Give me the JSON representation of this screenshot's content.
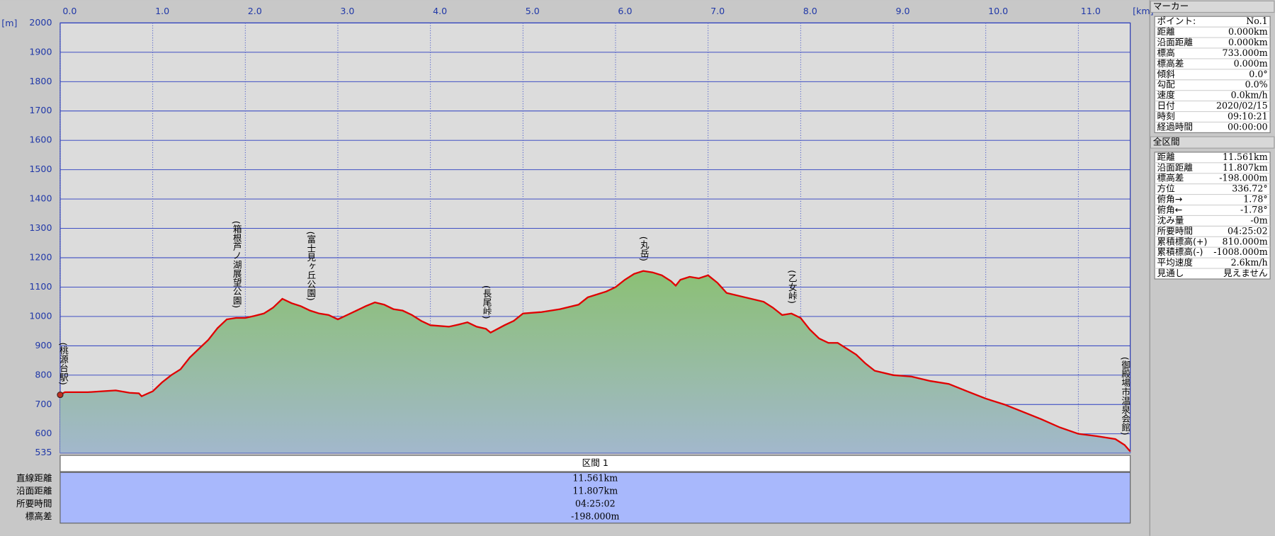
{
  "chart_data": {
    "type": "area",
    "x_unit": "[km]",
    "y_unit": "[m]",
    "x": [
      0,
      0.05,
      0.3,
      0.45,
      0.6,
      0.75,
      0.85,
      0.88,
      0.95,
      1.0,
      1.1,
      1.2,
      1.3,
      1.4,
      1.5,
      1.6,
      1.7,
      1.8,
      1.9,
      2.0,
      2.1,
      2.2,
      2.3,
      2.4,
      2.5,
      2.6,
      2.7,
      2.8,
      2.9,
      3.0,
      3.1,
      3.2,
      3.3,
      3.4,
      3.5,
      3.6,
      3.7,
      3.8,
      3.9,
      4.0,
      4.2,
      4.3,
      4.4,
      4.5,
      4.6,
      4.65,
      4.8,
      4.9,
      5.0,
      5.2,
      5.4,
      5.6,
      5.7,
      5.9,
      6.0,
      6.1,
      6.2,
      6.3,
      6.4,
      6.5,
      6.6,
      6.65,
      6.7,
      6.8,
      6.9,
      7.0,
      7.1,
      7.2,
      7.4,
      7.6,
      7.7,
      7.8,
      7.9,
      8.0,
      8.1,
      8.2,
      8.3,
      8.4,
      8.6,
      8.7,
      8.8,
      9.0,
      9.2,
      9.4,
      9.6,
      9.8,
      10.0,
      10.2,
      10.4,
      10.6,
      10.8,
      11.0,
      11.2,
      11.4,
      11.5,
      11.561
    ],
    "values": [
      733,
      742,
      742,
      745,
      748,
      740,
      738,
      728,
      738,
      745,
      775,
      800,
      820,
      860,
      890,
      920,
      960,
      990,
      995,
      995,
      1002,
      1010,
      1030,
      1060,
      1045,
      1035,
      1020,
      1010,
      1005,
      990,
      1005,
      1020,
      1035,
      1048,
      1040,
      1025,
      1020,
      1005,
      985,
      970,
      965,
      972,
      980,
      965,
      958,
      945,
      970,
      985,
      1010,
      1015,
      1025,
      1040,
      1065,
      1085,
      1100,
      1125,
      1145,
      1155,
      1150,
      1140,
      1120,
      1105,
      1125,
      1135,
      1130,
      1140,
      1115,
      1080,
      1065,
      1050,
      1030,
      1005,
      1010,
      995,
      955,
      925,
      910,
      910,
      870,
      840,
      815,
      800,
      795,
      780,
      770,
      745,
      720,
      700,
      675,
      650,
      622,
      600,
      592,
      582,
      562,
      540
    ],
    "color": "#e00000",
    "fill": "#8cc077",
    "xlim": [
      0,
      11.561
    ],
    "ylim": [
      535,
      2000
    ],
    "xticks": [
      {
        "value": 0,
        "label": "0.0"
      },
      {
        "value": 1,
        "label": "1.0"
      },
      {
        "value": 2,
        "label": "2.0"
      },
      {
        "value": 3,
        "label": "3.0"
      },
      {
        "value": 4,
        "label": "4.0"
      },
      {
        "value": 5,
        "label": "5.0"
      },
      {
        "value": 6,
        "label": "6.0"
      },
      {
        "value": 7,
        "label": "7.0"
      },
      {
        "value": 8,
        "label": "8.0"
      },
      {
        "value": 9,
        "label": "9.0"
      },
      {
        "value": 10,
        "label": "10.0"
      },
      {
        "value": 11,
        "label": "11.0"
      }
    ],
    "yticks": [
      535,
      600,
      700,
      800,
      900,
      1000,
      1100,
      1200,
      1300,
      1400,
      1500,
      1600,
      1700,
      1800,
      1900,
      2000
    ],
    "grid": true,
    "annotations": [
      {
        "text": "(桃源台駅)",
        "x": 0.0
      },
      {
        "text": "(箱根芦ノ湖展望公園)",
        "x": 1.9
      },
      {
        "text": "(富士見ヶ丘公園)",
        "x": 2.7
      },
      {
        "text": "(長尾峠)",
        "x": 4.6
      },
      {
        "text": "(丸岳)",
        "x": 6.3
      },
      {
        "text": "(乙女峠)",
        "x": 7.9
      },
      {
        "text": "(御殿場市温泉会館)",
        "x": 11.5
      }
    ]
  },
  "section_table": {
    "title": "区間 1",
    "rows": [
      [
        "直線距離",
        "11.561km"
      ],
      [
        "沿面距離",
        "11.807km"
      ],
      [
        "所要時間",
        "04:25:02"
      ],
      [
        "標高差",
        "-198.000m"
      ]
    ]
  },
  "side_panel": {
    "marker": {
      "title": "マーカー",
      "rows": [
        [
          "ポイント:",
          "No.1"
        ],
        [
          "距離",
          "0.000km"
        ],
        [
          "沿面距離",
          "0.000km"
        ],
        [
          "標高",
          "733.000m"
        ],
        [
          "標高差",
          "0.000m"
        ],
        [
          "傾斜",
          "0.0°"
        ],
        [
          "勾配",
          "0.0%"
        ],
        [
          "速度",
          "0.0km/h"
        ],
        [
          "日付",
          "2020/02/15"
        ],
        [
          "時刻",
          "09:10:21"
        ],
        [
          "経過時間",
          "00:00:00"
        ]
      ]
    },
    "all": {
      "title": "全区間",
      "rows": [
        [
          "距離",
          "11.561km"
        ],
        [
          "沿面距離",
          "11.807km"
        ],
        [
          "標高差",
          "-198.000m"
        ],
        [
          "方位",
          "336.72°"
        ],
        [
          "俯角→",
          "1.78°"
        ],
        [
          "俯角←",
          "-1.78°"
        ],
        [
          "沈み量",
          "-0m"
        ],
        [
          "所要時間",
          "04:25:02"
        ],
        [
          "累積標高(+)",
          "810.000m"
        ],
        [
          "累積標高(-)",
          "-1008.000m"
        ],
        [
          "平均速度",
          "2.6km/h"
        ],
        [
          "見通し",
          "見えません"
        ]
      ]
    }
  }
}
